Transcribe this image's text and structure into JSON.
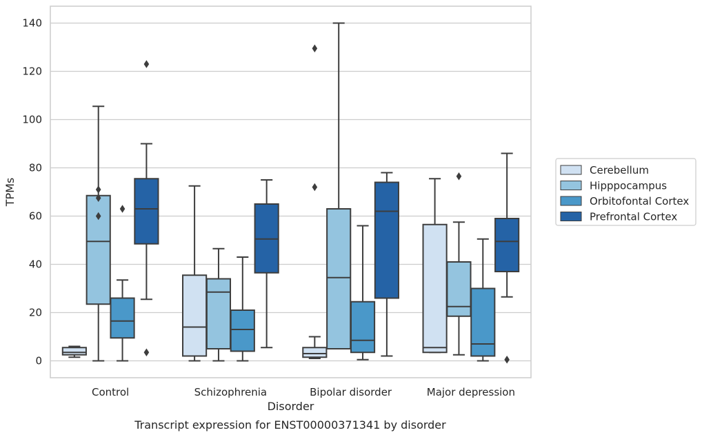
{
  "caption": "Transcript expression for ENST00000371341 by disorder",
  "chart_data": {
    "type": "boxplot",
    "xlabel": "Disorder",
    "ylabel": "TPMs",
    "ylim": [
      -7,
      147
    ],
    "yticks": [
      0,
      20,
      40,
      60,
      80,
      100,
      120,
      140
    ],
    "grid": true,
    "legend_position": "right",
    "categories": [
      "Control",
      "Schizophrenia",
      "Bipolar disorder",
      "Major depression"
    ],
    "series": [
      {
        "name": "Cerebellum",
        "color": "#d0e1f2",
        "boxes": [
          {
            "whisker_low": 1.5,
            "q1": 2.5,
            "median": 3.5,
            "q3": 5.5,
            "whisker_high": 6,
            "outliers": []
          },
          {
            "whisker_low": 0,
            "q1": 2,
            "median": 14,
            "q3": 35.5,
            "whisker_high": 72.5,
            "outliers": []
          },
          {
            "whisker_low": 1,
            "q1": 1.5,
            "median": 3,
            "q3": 5.5,
            "whisker_high": 10,
            "outliers": [
              72,
              129.5
            ]
          },
          {
            "whisker_low": 3.5,
            "q1": 3.5,
            "median": 5.5,
            "q3": 56.5,
            "whisker_high": 75.5,
            "outliers": []
          }
        ]
      },
      {
        "name": "Hipppocampus",
        "color": "#94c4df",
        "boxes": [
          {
            "whisker_low": 0,
            "q1": 23.5,
            "median": 49.5,
            "q3": 68.5,
            "whisker_high": 105.5,
            "outliers": [
              60,
              67.5,
              71
            ]
          },
          {
            "whisker_low": 0,
            "q1": 5,
            "median": 28.5,
            "q3": 34,
            "whisker_high": 46.5,
            "outliers": []
          },
          {
            "whisker_low": 5,
            "q1": 5,
            "median": 34.5,
            "q3": 63,
            "whisker_high": 140,
            "outliers": []
          },
          {
            "whisker_low": 2.5,
            "q1": 18.5,
            "median": 22.5,
            "q3": 41,
            "whisker_high": 57.5,
            "outliers": [
              76.5
            ]
          }
        ]
      },
      {
        "name": "Orbitofontal Cortex",
        "color": "#4a98c9",
        "boxes": [
          {
            "whisker_low": 0,
            "q1": 9.5,
            "median": 16.5,
            "q3": 26,
            "whisker_high": 33.5,
            "outliers": [
              63
            ]
          },
          {
            "whisker_low": 0,
            "q1": 4,
            "median": 13,
            "q3": 21,
            "whisker_high": 43,
            "outliers": []
          },
          {
            "whisker_low": 0.5,
            "q1": 3.5,
            "median": 8.5,
            "q3": 24.5,
            "whisker_high": 56,
            "outliers": []
          },
          {
            "whisker_low": 0,
            "q1": 2,
            "median": 7,
            "q3": 30,
            "whisker_high": 50.5,
            "outliers": []
          }
        ]
      },
      {
        "name": "Prefrontal Cortex",
        "color": "#2563a6",
        "boxes": [
          {
            "whisker_low": 25.5,
            "q1": 48.5,
            "median": 63,
            "q3": 75.5,
            "whisker_high": 90,
            "outliers": [
              3.5,
              123
            ]
          },
          {
            "whisker_low": 5.5,
            "q1": 36.5,
            "median": 50.5,
            "q3": 65,
            "whisker_high": 75,
            "outliers": []
          },
          {
            "whisker_low": 2,
            "q1": 26,
            "median": 62,
            "q3": 74,
            "whisker_high": 78,
            "outliers": []
          },
          {
            "whisker_low": 26.5,
            "q1": 37,
            "median": 49.5,
            "q3": 59,
            "whisker_high": 86,
            "outliers": [
              0.5
            ]
          }
        ]
      }
    ]
  }
}
